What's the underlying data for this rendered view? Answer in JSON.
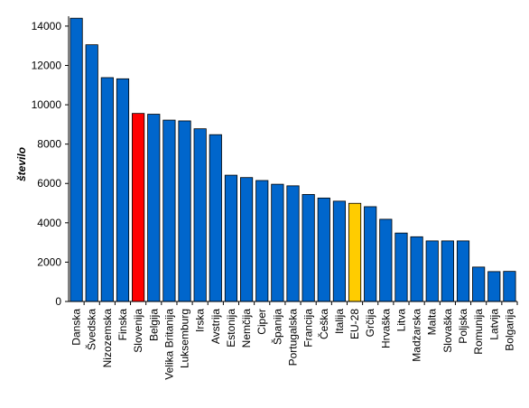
{
  "chart_data": {
    "type": "bar",
    "title": "",
    "xlabel": "",
    "ylabel": "število",
    "ylim": [
      0,
      14500
    ],
    "yticks": [
      0,
      2000,
      4000,
      6000,
      8000,
      10000,
      12000,
      14000
    ],
    "grid": false,
    "legend": "none",
    "categories": [
      "Danska",
      "Švedska",
      "Nizozemska",
      "Finska",
      "Slovenija",
      "Belgija",
      "Velika Britanija",
      "Luksemburg",
      "Irska",
      "Avstrija",
      "Estonija",
      "Nemčija",
      "Ciper",
      "Španija",
      "Portugalska",
      "Francija",
      "Češka",
      "Italija",
      "EU-28",
      "Grčija",
      "Hrvaška",
      "Litva",
      "Madžarska",
      "Malta",
      "Slovaška",
      "Poljska",
      "Romunija",
      "Latvija",
      "Bolgarija"
    ],
    "values": [
      14400,
      13050,
      11380,
      11320,
      9560,
      9520,
      9220,
      9180,
      8780,
      8480,
      6420,
      6300,
      6150,
      5960,
      5880,
      5440,
      5260,
      5100,
      4990,
      4820,
      4180,
      3480,
      3290,
      3080,
      3080,
      3080,
      1750,
      1520,
      1530
    ],
    "colors": {
      "default": "#0066cc",
      "Slovenija": "#ff0000",
      "EU-28": "#ffcc00",
      "edge": "#000000"
    }
  }
}
